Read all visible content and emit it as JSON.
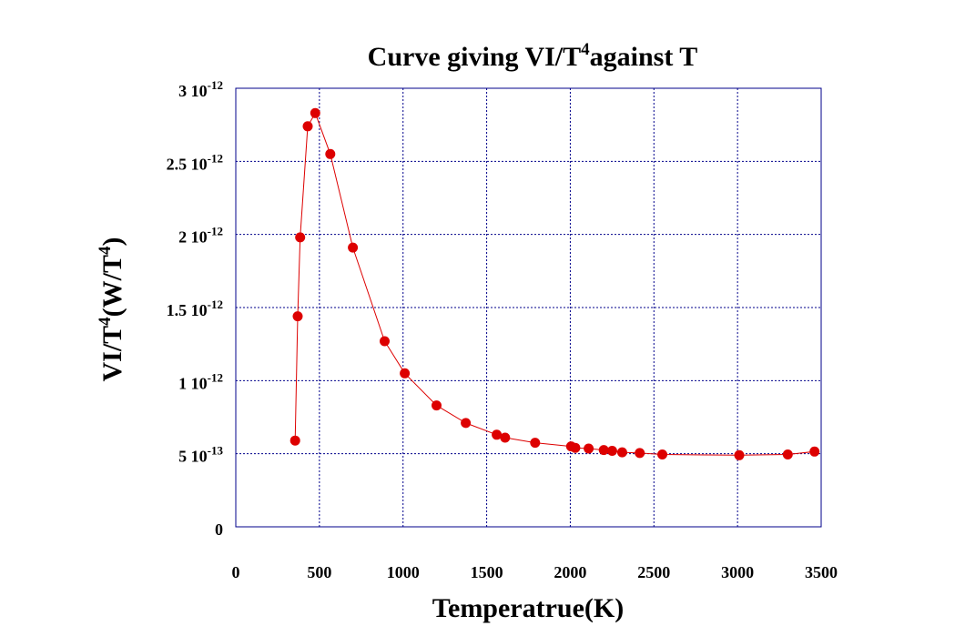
{
  "chart_data": {
    "type": "line",
    "title": "Curve giving VI/T⁴against T",
    "title_parts": {
      "main": "Curve giving VI/T",
      "sup": "4",
      "tail": "against T"
    },
    "xlabel": "Temperatrue(K)",
    "ylabel": "VI/T⁴(W/T⁴)",
    "ylabel_parts": {
      "a": "VI/T",
      "sup1": "4",
      "b": "(W/T",
      "sup2": "4",
      "c": ")"
    },
    "xlim": [
      0,
      3500
    ],
    "ylim": [
      0,
      3e-12
    ],
    "x_ticks": [
      {
        "value": 0,
        "label": "0"
      },
      {
        "value": 500,
        "label": "500"
      },
      {
        "value": 1000,
        "label": "1000"
      },
      {
        "value": 1500,
        "label": "1500"
      },
      {
        "value": 2000,
        "label": "2000"
      },
      {
        "value": 2500,
        "label": "2500"
      },
      {
        "value": 3000,
        "label": "3000"
      },
      {
        "value": 3500,
        "label": "3500"
      }
    ],
    "y_ticks": [
      {
        "value": 0,
        "mantissa": "0",
        "exponent": ""
      },
      {
        "value": 5e-13,
        "mantissa": "5 10",
        "exponent": "-13"
      },
      {
        "value": 1e-12,
        "mantissa": "1 10",
        "exponent": "-12"
      },
      {
        "value": 1.5e-12,
        "mantissa": "1.5 10",
        "exponent": "-12"
      },
      {
        "value": 2e-12,
        "mantissa": "2 10",
        "exponent": "-12"
      },
      {
        "value": 2.5e-12,
        "mantissa": "2.5 10",
        "exponent": "-12"
      },
      {
        "value": 3e-12,
        "mantissa": "3 10",
        "exponent": "-12"
      }
    ],
    "grid": true,
    "series": [
      {
        "name": "VI/T^4",
        "color": "#dd0000",
        "x": [
          355,
          370,
          385,
          430,
          475,
          565,
          700,
          890,
          1010,
          1200,
          1375,
          1560,
          1610,
          1790,
          2005,
          2030,
          2110,
          2200,
          2250,
          2310,
          2415,
          2550,
          3010,
          3300,
          3460
        ],
        "y": [
          5.9e-13,
          1.44e-12,
          1.98e-12,
          2.74e-12,
          2.83e-12,
          2.55e-12,
          1.91e-12,
          1.27e-12,
          1.05e-12,
          8.3e-13,
          7.1e-13,
          6.3e-13,
          6.1e-13,
          5.75e-13,
          5.5e-13,
          5.4e-13,
          5.35e-13,
          5.25e-13,
          5.2e-13,
          5.1e-13,
          5.05e-13,
          4.95e-13,
          4.9e-13,
          4.95e-13,
          5.15e-13
        ]
      }
    ]
  },
  "colors": {
    "axis_frame": "#00008b",
    "grid": "#00008b",
    "series": "#dd0000"
  }
}
